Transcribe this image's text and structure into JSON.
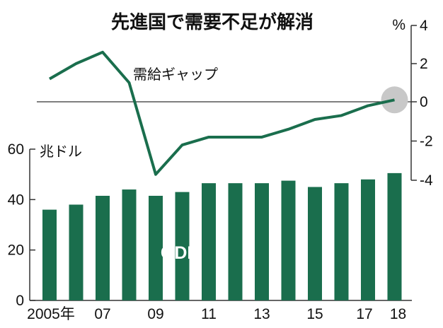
{
  "title": "先進国で需要不足が解消",
  "chart_data": [
    {
      "type": "line",
      "series": [
        {
          "name": "需給ギャップ",
          "x": [
            2005,
            2006,
            2007,
            2008,
            2009,
            2010,
            2011,
            2012,
            2013,
            2014,
            2015,
            2016,
            2017,
            2018
          ],
          "values": [
            1.2,
            2.0,
            2.6,
            1.0,
            -3.7,
            -2.2,
            -1.8,
            -1.8,
            -1.8,
            -1.4,
            -0.9,
            -0.7,
            -0.2,
            0.1
          ]
        }
      ],
      "unit": "%",
      "ylim": [
        -4,
        4
      ],
      "y_ticks": [
        "4",
        "2",
        "0",
        "-2",
        "-4"
      ],
      "zero_line": true,
      "highlight": {
        "x": 2018,
        "shape": "circle",
        "color": "#c8c8c8"
      }
    },
    {
      "type": "bar",
      "label": "GDP",
      "categories": [
        2005,
        2006,
        2007,
        2008,
        2009,
        2010,
        2011,
        2012,
        2013,
        2014,
        2015,
        2016,
        2017,
        2018
      ],
      "values": [
        36,
        38,
        41.5,
        44,
        41.5,
        43,
        46.5,
        46.5,
        46.5,
        47.5,
        45,
        46.5,
        48,
        50.5
      ],
      "unit": "兆ドル",
      "ylim": [
        0,
        60
      ],
      "y_ticks": [
        "0",
        "20",
        "40",
        "60"
      ],
      "x_tick_labels": [
        "2005年",
        "07",
        "09",
        "11",
        "13",
        "15",
        "17",
        "18"
      ]
    }
  ],
  "colors": {
    "series": "#1a6e4d",
    "highlight": "#c8c8c8",
    "axis": "#333333"
  }
}
